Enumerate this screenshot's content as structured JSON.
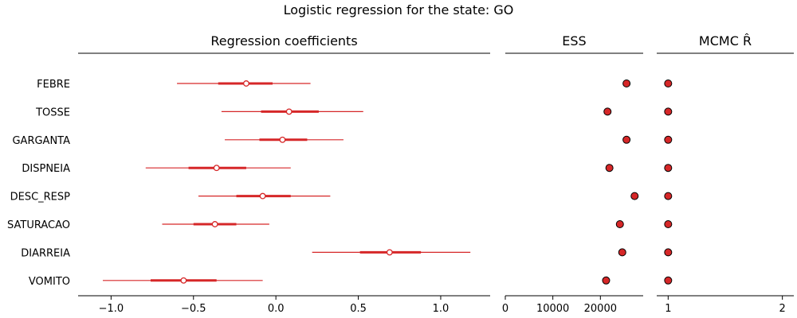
{
  "chart_data": {
    "type": "forest",
    "title": "Logistic regression for the state: GO",
    "variables": [
      "FEBRE",
      "TOSSE",
      "GARGANTA",
      "DISPNEIA",
      "DESC_RESP",
      "SATURACAO",
      "DIARREIA",
      "VOMITO"
    ],
    "colors": {
      "series": "#d62728",
      "edge": "#000000",
      "axis": "#000000"
    },
    "panels": [
      {
        "key": "coef",
        "title": "Regression coefficients",
        "xlim": [
          -1.2,
          1.3
        ],
        "ticks": [
          -1.0,
          -0.5,
          0.0,
          0.5,
          1.0
        ],
        "tick_labels": [
          "−1.0",
          "−0.5",
          "0.0",
          "0.5",
          "1.0"
        ],
        "points": [
          {
            "var": "FEBRE",
            "mean": -0.18,
            "hdi_low": -0.6,
            "hdi_high": 0.21,
            "iqr_low": -0.35,
            "iqr_high": -0.02
          },
          {
            "var": "TOSSE",
            "mean": 0.08,
            "hdi_low": -0.33,
            "hdi_high": 0.53,
            "iqr_low": -0.09,
            "iqr_high": 0.26
          },
          {
            "var": "GARGANTA",
            "mean": 0.04,
            "hdi_low": -0.31,
            "hdi_high": 0.41,
            "iqr_low": -0.1,
            "iqr_high": 0.19
          },
          {
            "var": "DISPNEIA",
            "mean": -0.36,
            "hdi_low": -0.79,
            "hdi_high": 0.09,
            "iqr_low": -0.53,
            "iqr_high": -0.18
          },
          {
            "var": "DESC_RESP",
            "mean": -0.08,
            "hdi_low": -0.47,
            "hdi_high": 0.33,
            "iqr_low": -0.24,
            "iqr_high": 0.09
          },
          {
            "var": "SATURACAO",
            "mean": -0.37,
            "hdi_low": -0.69,
            "hdi_high": -0.04,
            "iqr_low": -0.5,
            "iqr_high": -0.24
          },
          {
            "var": "DIARREIA",
            "mean": 0.69,
            "hdi_low": 0.22,
            "hdi_high": 1.18,
            "iqr_low": 0.51,
            "iqr_high": 0.88
          },
          {
            "var": "VOMITO",
            "mean": -0.56,
            "hdi_low": -1.05,
            "hdi_high": -0.08,
            "iqr_low": -0.76,
            "iqr_high": -0.36
          }
        ]
      },
      {
        "key": "ess",
        "title": "ESS",
        "xlim": [
          0,
          29000
        ],
        "ticks": [
          0,
          10000,
          20000
        ],
        "tick_labels": [
          "0",
          "10000",
          "20000"
        ],
        "points": [
          {
            "var": "FEBRE",
            "value": 25500
          },
          {
            "var": "TOSSE",
            "value": 21500
          },
          {
            "var": "GARGANTA",
            "value": 25500
          },
          {
            "var": "DISPNEIA",
            "value": 21900
          },
          {
            "var": "DESC_RESP",
            "value": 27200
          },
          {
            "var": "SATURACAO",
            "value": 24100
          },
          {
            "var": "DIARREIA",
            "value": 24600
          },
          {
            "var": "VOMITO",
            "value": 21200
          }
        ]
      },
      {
        "key": "rhat",
        "title": "MCMC R̂",
        "xlim": [
          0.9,
          2.1
        ],
        "ticks": [
          1,
          2
        ],
        "tick_labels": [
          "1",
          "2"
        ],
        "points": [
          {
            "var": "FEBRE",
            "value": 1.0
          },
          {
            "var": "TOSSE",
            "value": 1.0
          },
          {
            "var": "GARGANTA",
            "value": 1.0
          },
          {
            "var": "DISPNEIA",
            "value": 1.0
          },
          {
            "var": "DESC_RESP",
            "value": 1.0
          },
          {
            "var": "SATURACAO",
            "value": 1.0
          },
          {
            "var": "DIARREIA",
            "value": 1.0
          },
          {
            "var": "VOMITO",
            "value": 1.0
          }
        ]
      }
    ]
  }
}
